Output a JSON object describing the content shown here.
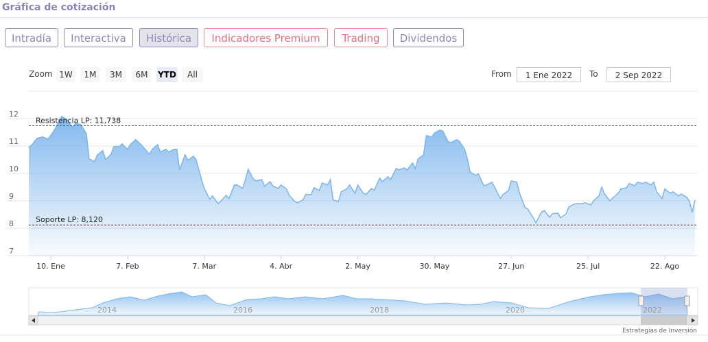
{
  "header": {
    "title": "Gráfica de cotización"
  },
  "tabs": {
    "items": [
      {
        "label": "Intradía",
        "premium": false
      },
      {
        "label": "Interactiva",
        "premium": false
      },
      {
        "label": "Histórica",
        "premium": false
      },
      {
        "label": "Indicadores Premium",
        "premium": true
      },
      {
        "label": "Trading",
        "premium": true
      },
      {
        "label": "Dividendos",
        "premium": false
      }
    ],
    "active": 2
  },
  "range_selector": {
    "label": "Zoom",
    "buttons": [
      "1W",
      "1M",
      "3M",
      "6M",
      "YTD",
      "All"
    ],
    "active": 4,
    "from_label": "From",
    "from": "1 Ene 2022",
    "to_label": "To",
    "to": "2 Sep 2022"
  },
  "chart_data": {
    "type": "area",
    "color": "#7cb5ec",
    "grid": true,
    "x": [
      2,
      3,
      5,
      7,
      9,
      11,
      13,
      14,
      16,
      18,
      19,
      21,
      23,
      24,
      26,
      27,
      29,
      30,
      32,
      33,
      35,
      36,
      38,
      39,
      41,
      43,
      44,
      46,
      47,
      49,
      50,
      52,
      53,
      55,
      56,
      57,
      59,
      60,
      62,
      63,
      65,
      66,
      68,
      69,
      71,
      72,
      74,
      75,
      77,
      78,
      80,
      81,
      82,
      84,
      85,
      87,
      88,
      90,
      91,
      93,
      94,
      96,
      97,
      99,
      100,
      102,
      103,
      105,
      106,
      108,
      109,
      111,
      112,
      113,
      115,
      116,
      118,
      119,
      121,
      122,
      124,
      125,
      127,
      128,
      130,
      131,
      133,
      134,
      136,
      137,
      139,
      140,
      142,
      143,
      144,
      146,
      147,
      149,
      150,
      152,
      153,
      155,
      156,
      158,
      159,
      161,
      162,
      163,
      165,
      166,
      168,
      169,
      171,
      172,
      174,
      175,
      177,
      178,
      180,
      181,
      183,
      184,
      186,
      187,
      189,
      190,
      192,
      193,
      195,
      196,
      198,
      199,
      201,
      202,
      204,
      205,
      207,
      208,
      210,
      211,
      212,
      214,
      215,
      217,
      218,
      220,
      221,
      223,
      224,
      226,
      227,
      229,
      230,
      231,
      233,
      234,
      236,
      237,
      239,
      240,
      242,
      243,
      244,
      245
    ],
    "values": [
      10.95,
      11.03,
      11.28,
      11.33,
      11.25,
      11.53,
      11.88,
      12.08,
      11.95,
      11.68,
      11.83,
      11.78,
      11.45,
      10.53,
      10.43,
      10.68,
      10.83,
      10.5,
      10.7,
      10.98,
      10.98,
      11.08,
      10.88,
      11.05,
      11.23,
      11.05,
      10.93,
      10.7,
      10.88,
      11.05,
      10.78,
      10.88,
      10.78,
      10.88,
      10.88,
      10.13,
      10.68,
      10.48,
      10.63,
      10.5,
      9.78,
      9.45,
      9.05,
      9.18,
      8.9,
      8.98,
      9.2,
      9.08,
      9.58,
      9.58,
      9.45,
      9.78,
      10.15,
      9.78,
      9.73,
      9.78,
      9.53,
      9.7,
      9.55,
      9.45,
      9.58,
      9.43,
      9.2,
      8.98,
      8.93,
      9.03,
      9.23,
      9.23,
      9.48,
      9.38,
      9.65,
      9.58,
      9.78,
      9.03,
      8.98,
      9.33,
      9.43,
      9.58,
      9.28,
      9.58,
      9.28,
      9.23,
      9.45,
      9.38,
      9.83,
      9.7,
      9.88,
      9.78,
      10.18,
      10.13,
      10.2,
      10.13,
      10.38,
      10.18,
      10.53,
      10.68,
      11.38,
      11.33,
      11.48,
      11.58,
      11.55,
      11.15,
      11.13,
      11.23,
      11.18,
      10.88,
      10.53,
      10.05,
      9.93,
      9.98,
      9.55,
      9.58,
      9.68,
      9.48,
      9.08,
      9.23,
      9.38,
      9.73,
      9.68,
      9.28,
      8.75,
      8.7,
      8.38,
      8.2,
      8.58,
      8.65,
      8.4,
      8.53,
      8.55,
      8.38,
      8.53,
      8.78,
      8.88,
      8.9,
      8.9,
      8.93,
      8.85,
      9.0,
      9.18,
      9.5,
      9.25,
      9.0,
      9.1,
      9.28,
      9.43,
      9.48,
      9.63,
      9.55,
      9.68,
      9.63,
      9.68,
      9.58,
      9.68,
      9.33,
      9.08,
      9.43,
      9.28,
      9.33,
      9.18,
      9.25,
      9.13,
      8.98,
      8.58,
      9.03
    ],
    "xlim": [
      2,
      246
    ],
    "xticks": [
      {
        "value": 10,
        "label": "10. Ene"
      },
      {
        "value": 38,
        "label": "7. Feb"
      },
      {
        "value": 66,
        "label": "7. Mar"
      },
      {
        "value": 94,
        "label": "4. Abr"
      },
      {
        "value": 122,
        "label": "2. May"
      },
      {
        "value": 150,
        "label": "30. May"
      },
      {
        "value": 178,
        "label": "27. Jun"
      },
      {
        "value": 206,
        "label": "25. Jul"
      },
      {
        "value": 234,
        "label": "22. Ago"
      }
    ],
    "ylim": [
      7,
      13
    ],
    "yticks": [
      7,
      8,
      9,
      10,
      11,
      12
    ],
    "plot_lines": [
      {
        "label": "Resistencia LP: 11,738",
        "value": 11.738,
        "color": "#2d6a2d"
      },
      {
        "label": "Soporte LP: 8,120",
        "value": 8.12,
        "color": "#8b1a1a"
      }
    ],
    "navigator": {
      "labels": [
        "2014",
        "2016",
        "2018",
        "2020",
        "2022"
      ]
    },
    "credits": "Estrategias de Inversión"
  }
}
